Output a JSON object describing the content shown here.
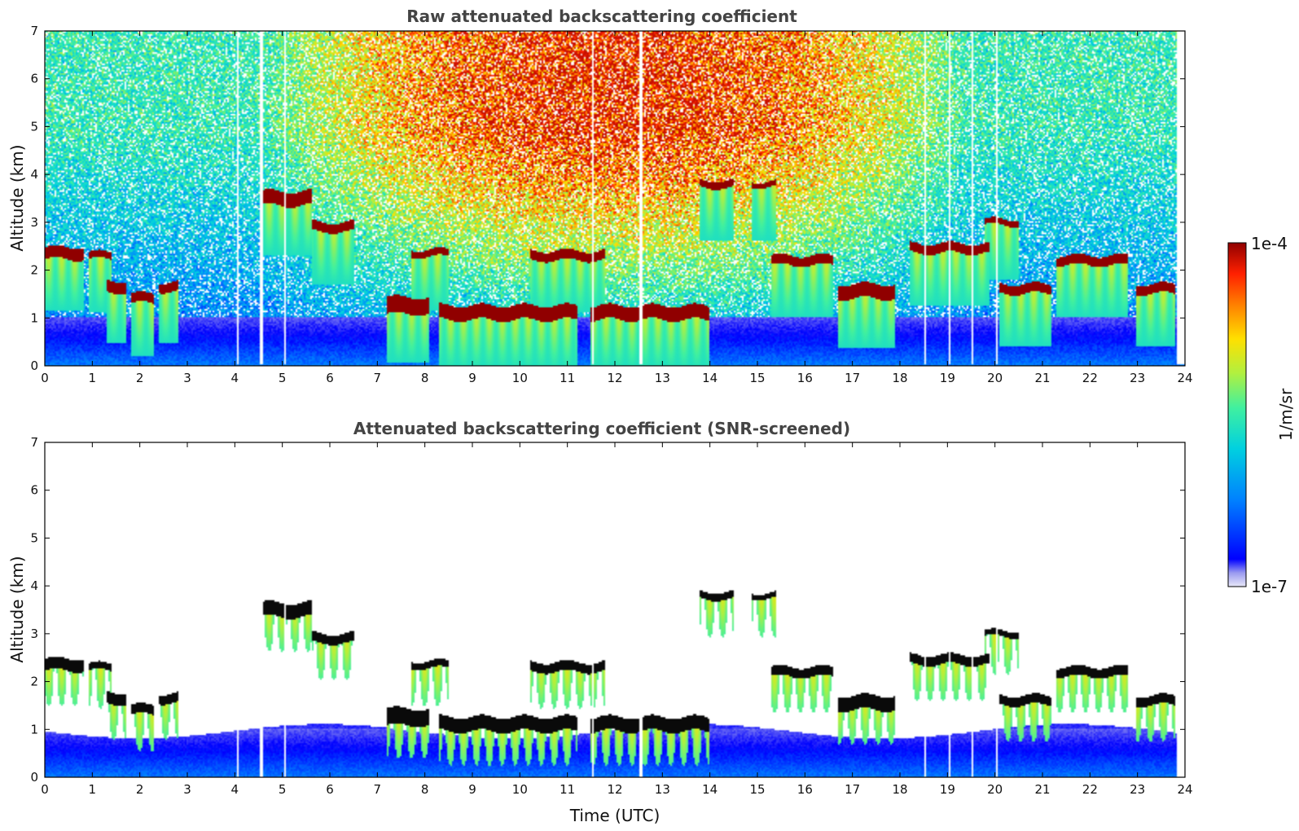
{
  "chart_data": [
    {
      "type": "heatmap",
      "title": "Raw attenuated backscattering coefficient",
      "xlabel": "",
      "ylabel": "Altitude (km)",
      "xlim": [
        0,
        24
      ],
      "ylim": [
        0,
        7
      ],
      "xticks": [
        "0",
        "1",
        "2",
        "3",
        "4",
        "5",
        "6",
        "7",
        "8",
        "9",
        "10",
        "11",
        "12",
        "13",
        "14",
        "15",
        "16",
        "17",
        "18",
        "19",
        "20",
        "21",
        "22",
        "23",
        "24"
      ],
      "yticks": [
        "0",
        "1",
        "2",
        "3",
        "4",
        "5",
        "6",
        "7"
      ],
      "screened": false,
      "layers": [
        {
          "t0": 0.0,
          "t1": 0.8,
          "alt": 2.35,
          "thickness": 0.25
        },
        {
          "t0": 0.9,
          "t1": 1.4,
          "alt": 2.3,
          "thickness": 0.15
        },
        {
          "t0": 1.3,
          "t1": 1.7,
          "alt": 1.65,
          "thickness": 0.25
        },
        {
          "t0": 1.8,
          "t1": 2.3,
          "alt": 1.4,
          "thickness": 0.2
        },
        {
          "t0": 2.4,
          "t1": 2.8,
          "alt": 1.65,
          "thickness": 0.2
        },
        {
          "t0": 4.55,
          "t1": 5.6,
          "alt": 3.5,
          "thickness": 0.3
        },
        {
          "t0": 5.6,
          "t1": 6.5,
          "alt": 2.9,
          "thickness": 0.2
        },
        {
          "t0": 7.2,
          "t1": 8.1,
          "alt": 1.25,
          "thickness": 0.35
        },
        {
          "t0": 7.7,
          "t1": 8.5,
          "alt": 2.35,
          "thickness": 0.15
        },
        {
          "t0": 8.3,
          "t1": 11.2,
          "alt": 1.1,
          "thickness": 0.3
        },
        {
          "t0": 10.2,
          "t1": 11.8,
          "alt": 2.3,
          "thickness": 0.2
        },
        {
          "t0": 11.5,
          "t1": 14.0,
          "alt": 1.1,
          "thickness": 0.3
        },
        {
          "t0": 13.8,
          "t1": 14.5,
          "alt": 3.8,
          "thickness": 0.15
        },
        {
          "t0": 14.9,
          "t1": 15.4,
          "alt": 3.8,
          "thickness": 0.12
        },
        {
          "t0": 15.3,
          "t1": 16.6,
          "alt": 2.2,
          "thickness": 0.2
        },
        {
          "t0": 16.7,
          "t1": 17.9,
          "alt": 1.55,
          "thickness": 0.3
        },
        {
          "t0": 18.2,
          "t1": 19.9,
          "alt": 2.45,
          "thickness": 0.2
        },
        {
          "t0": 19.8,
          "t1": 20.5,
          "alt": 3.0,
          "thickness": 0.12
        },
        {
          "t0": 20.1,
          "t1": 21.2,
          "alt": 1.6,
          "thickness": 0.2
        },
        {
          "t0": 21.3,
          "t1": 22.8,
          "alt": 2.2,
          "thickness": 0.2
        },
        {
          "t0": 23.0,
          "t1": 23.8,
          "alt": 1.6,
          "thickness": 0.2
        }
      ]
    },
    {
      "type": "heatmap",
      "title": "Attenuated backscattering coefficient (SNR-screened)",
      "xlabel": "Time (UTC)",
      "ylabel": "Altitude (km)",
      "xlim": [
        0,
        24
      ],
      "ylim": [
        0,
        7
      ],
      "xticks": [
        "0",
        "1",
        "2",
        "3",
        "4",
        "5",
        "6",
        "7",
        "8",
        "9",
        "10",
        "11",
        "12",
        "13",
        "14",
        "15",
        "16",
        "17",
        "18",
        "19",
        "20",
        "21",
        "22",
        "23",
        "24"
      ],
      "yticks": [
        "0",
        "1",
        "2",
        "3",
        "4",
        "5",
        "6",
        "7"
      ],
      "screened": true
    }
  ],
  "colorbar": {
    "label": "1/m/sr",
    "max_label": "1e-4",
    "min_label": "1e-7",
    "scale": "log",
    "range": [
      1e-07,
      0.0001
    ],
    "colormap": [
      "#e8e8f8",
      "#9a9af0",
      "#0000ff",
      "#0080ff",
      "#00d0e0",
      "#40f0a0",
      "#b0f040",
      "#ffe000",
      "#ff8000",
      "#ff2000",
      "#900000"
    ]
  }
}
